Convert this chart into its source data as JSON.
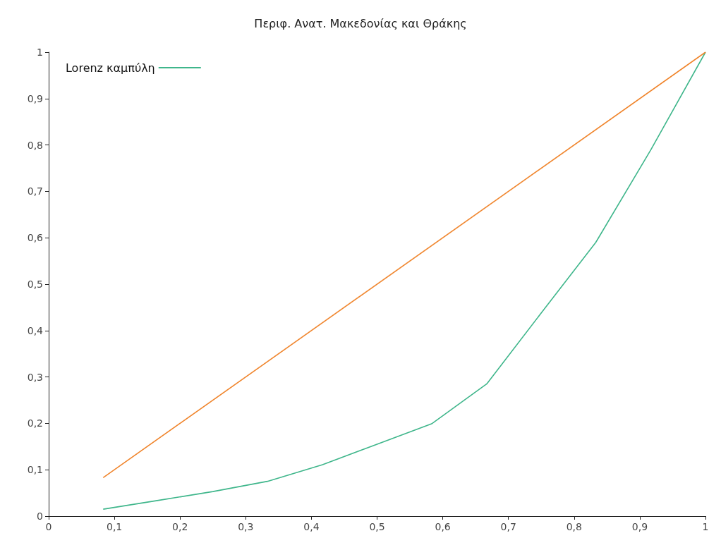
{
  "chart_data": {
    "type": "line",
    "title": "Περιφ. Ανατ. Μακεδονίας και Θράκης",
    "series": [
      {
        "name": "Lorenz καμπύλη",
        "color": "#3fb68b",
        "x": [
          0.083,
          0.167,
          0.25,
          0.333,
          0.417,
          0.5,
          0.583,
          0.667,
          0.75,
          0.833,
          0.917,
          1
        ],
        "values": [
          0.015,
          0.034,
          0.053,
          0.075,
          0.111,
          0.155,
          0.199,
          0.285,
          0.438,
          0.59,
          0.79,
          1
        ]
      },
      {
        "color": "#f0862e",
        "x": [
          0.083,
          1
        ],
        "values": [
          0.083,
          1
        ]
      }
    ],
    "xlim": [
      0,
      1
    ],
    "ylim": [
      0,
      1
    ],
    "xticks": [
      0,
      {
        "value": 0.1,
        "label": "0,1"
      },
      {
        "value": 0.2,
        "label": "0,2"
      },
      {
        "value": 0.3,
        "label": "0,3"
      },
      {
        "value": 0.4,
        "label": "0,4"
      },
      {
        "value": 0.5,
        "label": "0,5"
      },
      {
        "value": 0.6,
        "label": "0,6"
      },
      {
        "value": 0.7,
        "label": "0,7"
      },
      {
        "value": 0.8,
        "label": "0,8"
      },
      {
        "value": 0.9,
        "label": "0,9"
      },
      1
    ],
    "yticks": [
      0,
      {
        "value": 0.1,
        "label": "0,1"
      },
      {
        "value": 0.2,
        "label": "0,2"
      },
      {
        "value": 0.3,
        "label": "0,3"
      },
      {
        "value": 0.4,
        "label": "0,4"
      },
      {
        "value": 0.5,
        "label": "0,5"
      },
      {
        "value": 0.6,
        "label": "0,6"
      },
      {
        "value": 0.7,
        "label": "0,7"
      },
      {
        "value": 0.8,
        "label": "0,8"
      },
      {
        "value": 0.9,
        "label": "0,9"
      },
      1
    ],
    "grid": false,
    "legend": "top left",
    "marker": "none",
    "line_style": "solid"
  }
}
